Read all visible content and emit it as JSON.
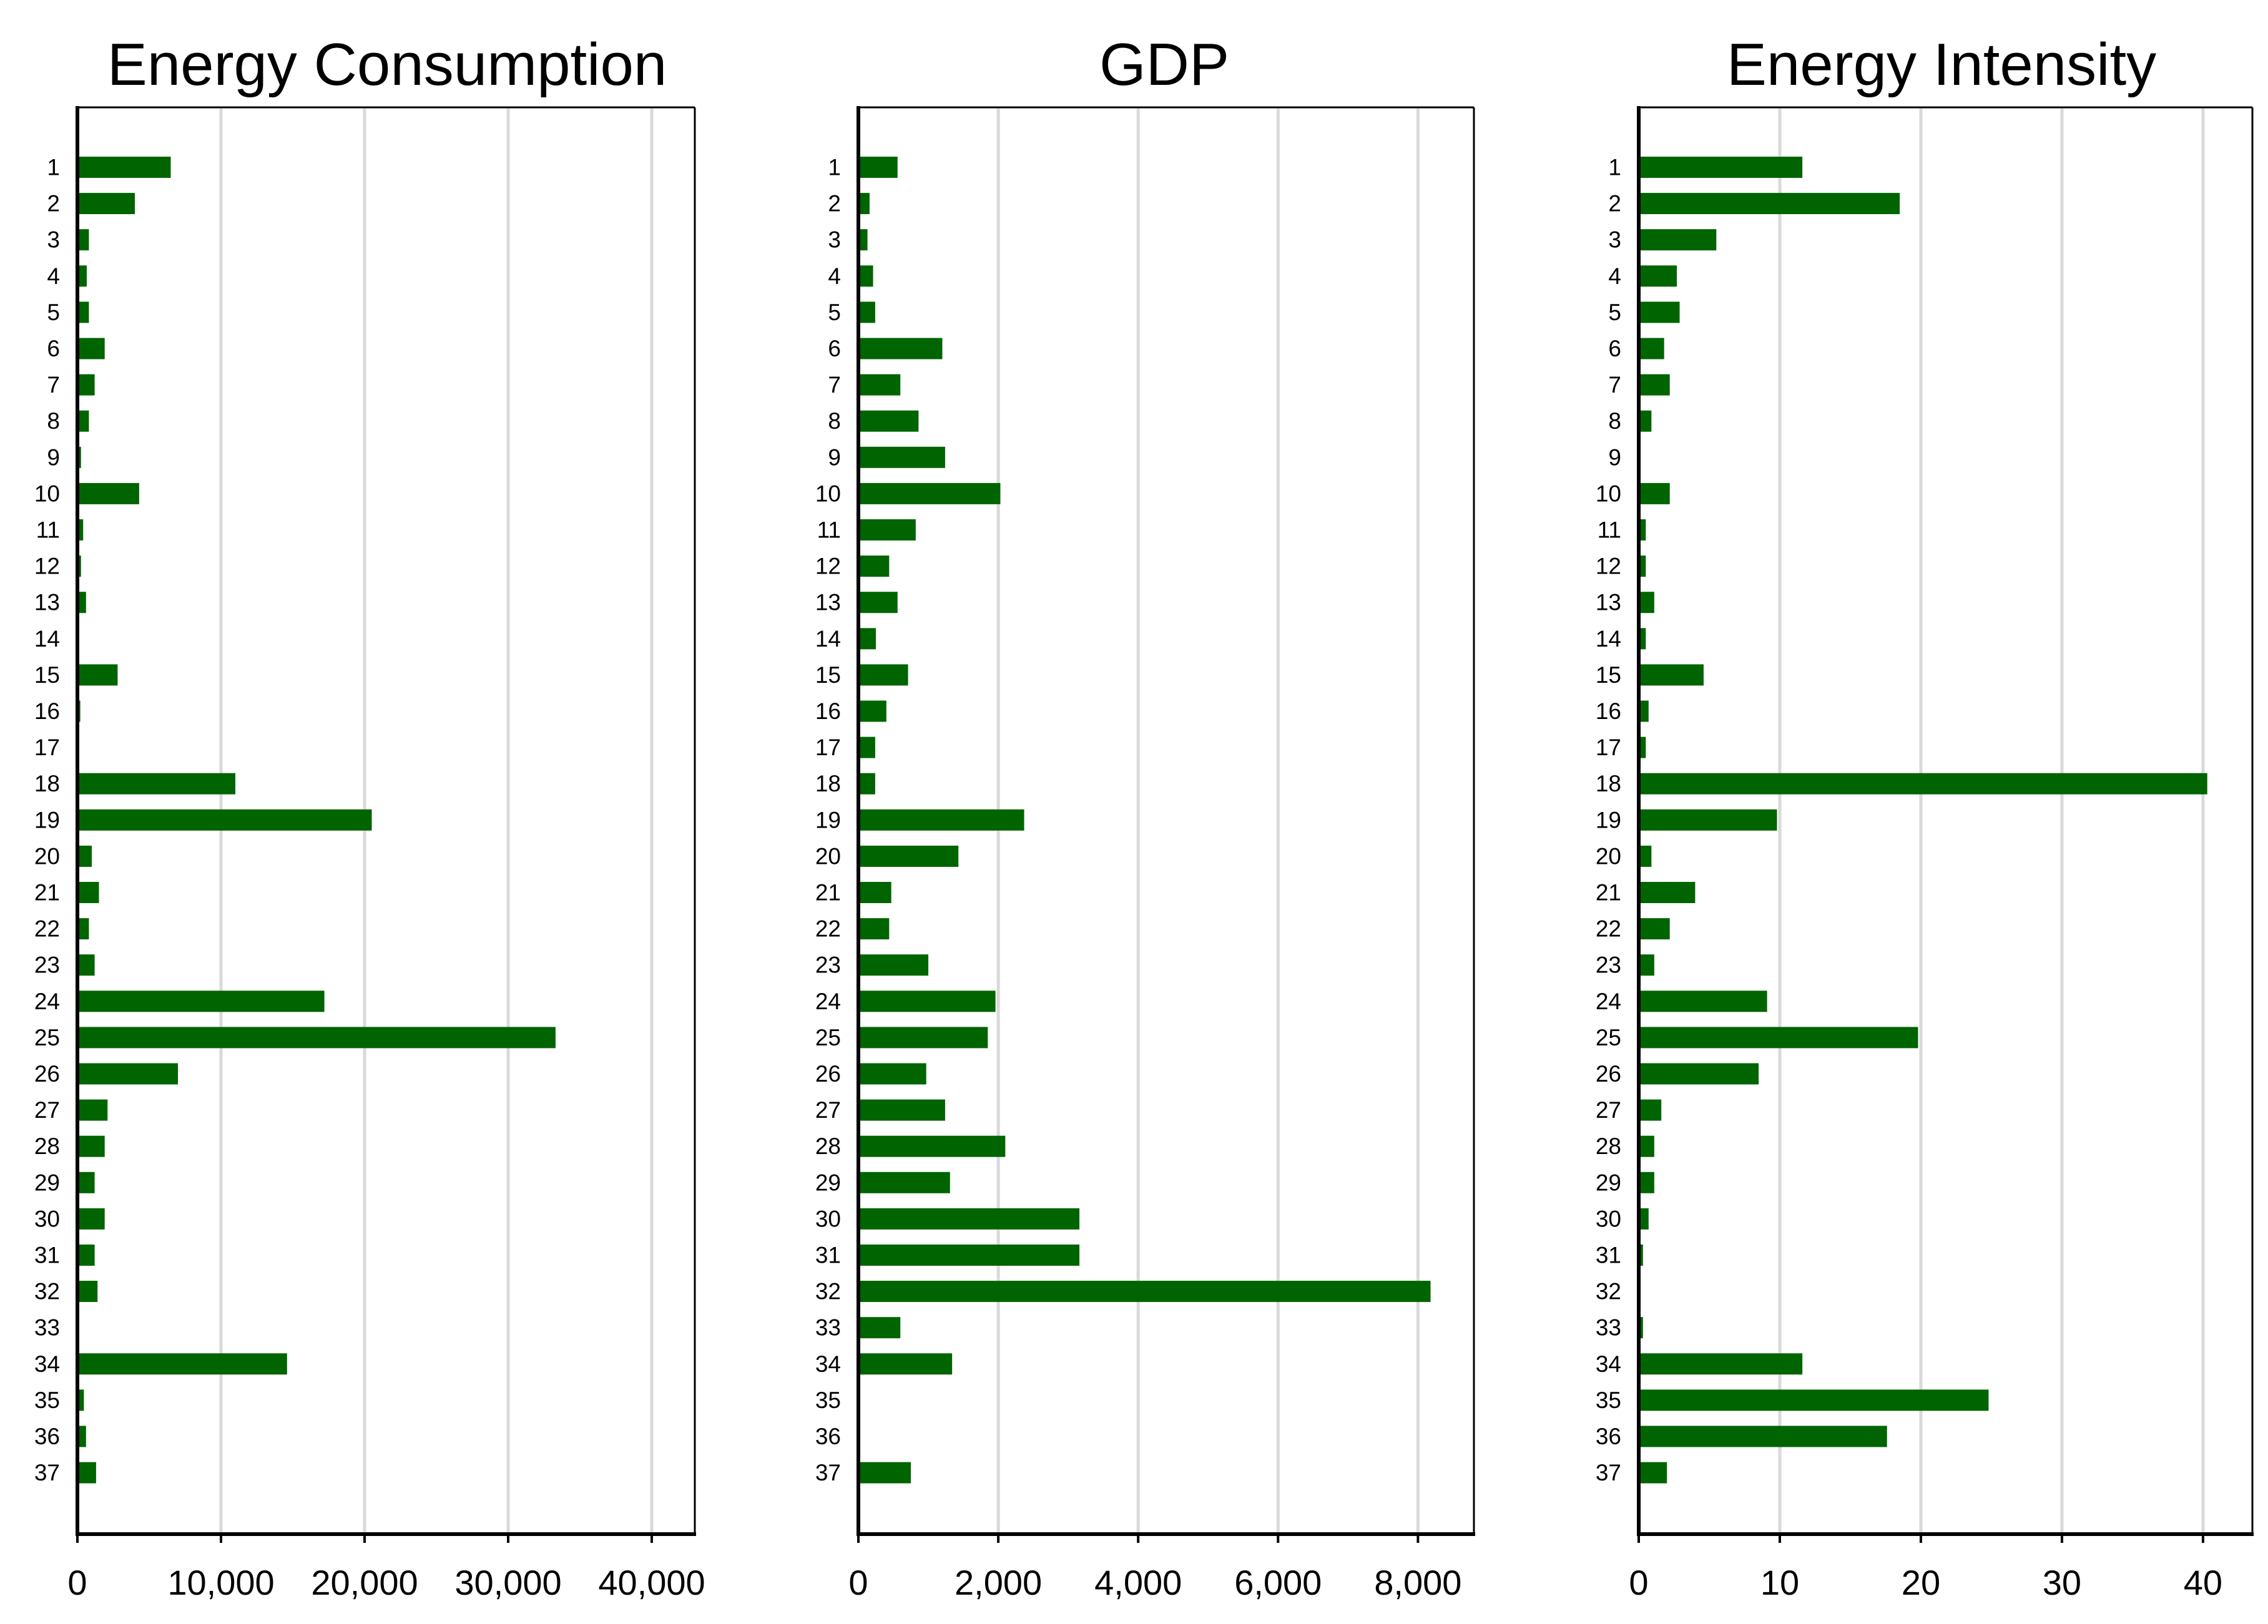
{
  "chart_data": [
    {
      "type": "bar",
      "orientation": "horizontal",
      "title": "Energy Consumption",
      "xlabel": "",
      "ylabel": "",
      "xlim": [
        0,
        43000
      ],
      "xticks": [
        0,
        10000,
        20000,
        30000,
        40000
      ],
      "xtick_labels": [
        "0",
        "10,000",
        "20,000",
        "30,000",
        "40,000"
      ],
      "grid": "vertical",
      "bar_color": "#006400",
      "categories": [
        "1",
        "2",
        "3",
        "4",
        "5",
        "6",
        "7",
        "8",
        "9",
        "10",
        "11",
        "12",
        "13",
        "14",
        "15",
        "16",
        "17",
        "18",
        "19",
        "20",
        "21",
        "22",
        "23",
        "24",
        "25",
        "26",
        "27",
        "28",
        "29",
        "30",
        "31",
        "32",
        "33",
        "34",
        "35",
        "36",
        "37"
      ],
      "values": [
        6500,
        4000,
        800,
        650,
        800,
        1900,
        1200,
        800,
        250,
        4300,
        400,
        250,
        600,
        0,
        2800,
        200,
        0,
        11000,
        20500,
        1000,
        1500,
        800,
        1200,
        17200,
        33300,
        7000,
        2100,
        1900,
        1200,
        1900,
        1200,
        1400,
        0,
        14600,
        450,
        600,
        1300
      ]
    },
    {
      "type": "bar",
      "orientation": "horizontal",
      "title": "GDP",
      "xlabel": "",
      "ylabel": "",
      "xlim": [
        0,
        8800
      ],
      "xticks": [
        0,
        2000,
        4000,
        6000,
        8000
      ],
      "xtick_labels": [
        "0",
        "2,000",
        "4,000",
        "6,000",
        "8,000"
      ],
      "grid": "vertical",
      "bar_color": "#006400",
      "categories": [
        "1",
        "2",
        "3",
        "4",
        "5",
        "6",
        "7",
        "8",
        "9",
        "10",
        "11",
        "12",
        "13",
        "14",
        "15",
        "16",
        "17",
        "18",
        "19",
        "20",
        "21",
        "22",
        "23",
        "24",
        "25",
        "26",
        "27",
        "28",
        "29",
        "30",
        "31",
        "32",
        "33",
        "34",
        "35",
        "36",
        "37"
      ],
      "values": [
        560,
        160,
        130,
        210,
        240,
        1200,
        600,
        860,
        1240,
        2030,
        820,
        440,
        560,
        250,
        710,
        400,
        240,
        240,
        2370,
        1430,
        470,
        440,
        1000,
        1960,
        1850,
        970,
        1240,
        2100,
        1310,
        3160,
        3160,
        8180,
        600,
        1340,
        0,
        0,
        750
      ]
    },
    {
      "type": "bar",
      "orientation": "horizontal",
      "title": "Energy Intensity",
      "xlabel": "",
      "ylabel": "",
      "xlim": [
        0,
        43.5
      ],
      "xticks": [
        0,
        10,
        20,
        30,
        40
      ],
      "xtick_labels": [
        "0",
        "10",
        "20",
        "30",
        "40"
      ],
      "grid": "vertical",
      "bar_color": "#006400",
      "categories": [
        "1",
        "2",
        "3",
        "4",
        "5",
        "6",
        "7",
        "8",
        "9",
        "10",
        "11",
        "12",
        "13",
        "14",
        "15",
        "16",
        "17",
        "18",
        "19",
        "20",
        "21",
        "22",
        "23",
        "24",
        "25",
        "26",
        "27",
        "28",
        "29",
        "30",
        "31",
        "32",
        "33",
        "34",
        "35",
        "36",
        "37"
      ],
      "values": [
        11.6,
        18.5,
        5.5,
        2.7,
        2.9,
        1.8,
        2.2,
        0.9,
        0,
        2.2,
        0.5,
        0.5,
        1.1,
        0.5,
        4.6,
        0.7,
        0.5,
        40.3,
        9.8,
        0.9,
        4.0,
        2.2,
        1.1,
        9.1,
        19.8,
        8.5,
        1.6,
        1.1,
        1.1,
        0.7,
        0.3,
        0,
        0.3,
        11.6,
        24.8,
        17.6,
        2.0
      ]
    }
  ]
}
